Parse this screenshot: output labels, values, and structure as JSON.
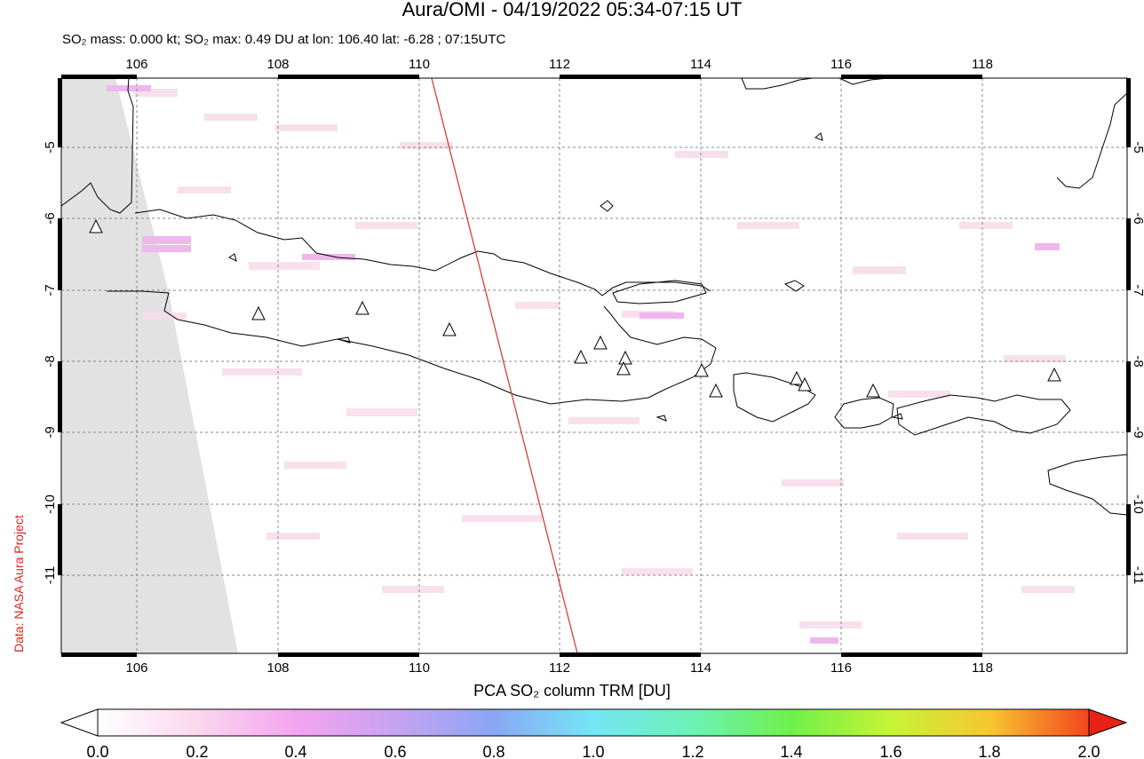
{
  "header": {
    "title": "Aura/OMI - 04/19/2022 05:34-07:15 UT",
    "subtitle": "SO₂ mass: 0.000 kt; SO₂ max: 0.49 DU at lon: 106.40 lat: -6.28 ; 07:15UTC"
  },
  "credit": "Data: NASA Aura Project",
  "map": {
    "lon_ticks": [
      "106",
      "108",
      "110",
      "112",
      "114",
      "116",
      "118"
    ],
    "lat_ticks": [
      "-5",
      "-6",
      "-7",
      "-8",
      "-9",
      "-10",
      "-11"
    ],
    "lon_range": [
      104.9,
      119.95
    ],
    "lat_range": [
      -12.0,
      -3.95
    ],
    "grid": true,
    "volcano_marker": "triangle-icon"
  },
  "colorbar": {
    "title": "PCA SO₂ column TRM [DU]",
    "labels": [
      "0.0",
      "0.2",
      "0.4",
      "0.6",
      "0.8",
      "1.0",
      "1.2",
      "1.4",
      "1.6",
      "1.8",
      "2.0"
    ],
    "range": [
      0.0,
      2.0
    ],
    "colors": [
      "#ffffff",
      "#fbd7ee",
      "#f3a4f0",
      "#c8a2f2",
      "#8aa6f4",
      "#74e6f6",
      "#6cf2b6",
      "#6ef04a",
      "#c6f435",
      "#f8c630",
      "#f2451e",
      "#e82217"
    ]
  }
}
